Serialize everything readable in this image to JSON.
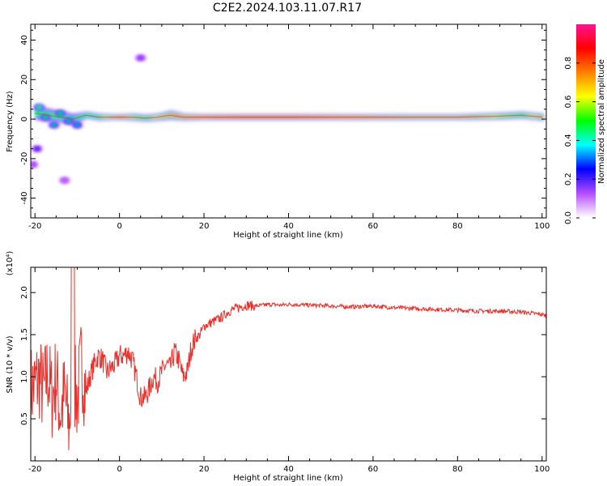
{
  "title": "C2E2.2024.103.11.07.R17",
  "colors": {
    "snr_line": "#e8302c",
    "axis": "#000000",
    "spectrum_ridge": "#e8302c"
  },
  "chart_data": [
    {
      "type": "heatmap",
      "xlabel": "Height of straight line (km)",
      "ylabel": "Frequency (Hz)",
      "xlim": [
        -21,
        101
      ],
      "ylim": [
        -50,
        48
      ],
      "x_ticks": [
        -20,
        0,
        20,
        40,
        60,
        80,
        100
      ],
      "y_ticks": [
        -40,
        -20,
        0,
        20,
        40
      ],
      "grid": false,
      "colorbar": {
        "label": "Normalized spectral amplitude",
        "range": [
          0.0,
          1.0
        ],
        "ticks": [
          0.0,
          0.2,
          0.4,
          0.6,
          0.8
        ],
        "colormap": [
          "#ffffff",
          "#b44dff",
          "#0000ff",
          "#00ffff",
          "#00ff00",
          "#ffff00",
          "#ff8000",
          "#ff0000",
          "#ff1493"
        ]
      },
      "ridge": {
        "x": [
          -20,
          -17,
          -14,
          -11,
          -8,
          -5,
          -2,
          0,
          3,
          6,
          9,
          12,
          15,
          20,
          30,
          40,
          50,
          60,
          70,
          80,
          90,
          95,
          100
        ],
        "frequency_hz": [
          3,
          2,
          1,
          0,
          2,
          1,
          1,
          1,
          1,
          0.5,
          1,
          2,
          1,
          1,
          1,
          1,
          1,
          1,
          1,
          1,
          1.5,
          2,
          1
        ],
        "amplitude": [
          0.5,
          0.55,
          0.5,
          0.45,
          0.5,
          0.55,
          0.7,
          0.85,
          0.6,
          0.55,
          0.65,
          0.75,
          0.8,
          0.85,
          0.9,
          0.9,
          0.85,
          0.8,
          0.75,
          0.75,
          0.6,
          0.55,
          0.7
        ],
        "spread_hz": [
          6,
          6,
          5,
          5,
          3,
          3,
          2.5,
          2.5,
          3,
          3,
          3,
          4,
          3,
          2.5,
          2.5,
          2.5,
          2.5,
          2.5,
          2.5,
          2.5,
          3,
          3,
          3
        ]
      },
      "blobs": [
        {
          "x": -19,
          "frequency_hz": 6,
          "amplitude": 0.55
        },
        {
          "x": -17.5,
          "frequency_hz": 1,
          "amplitude": 0.5
        },
        {
          "x": -15.5,
          "frequency_hz": -3,
          "amplitude": 0.45
        },
        {
          "x": -14,
          "frequency_hz": 3,
          "amplitude": 0.5
        },
        {
          "x": -12,
          "frequency_hz": -1,
          "amplitude": 0.45
        },
        {
          "x": -10,
          "frequency_hz": -3,
          "amplitude": 0.4
        },
        {
          "x": 5,
          "frequency_hz": 31,
          "amplitude": 0.15
        },
        {
          "x": -19.5,
          "frequency_hz": -15,
          "amplitude": 0.2
        },
        {
          "x": -20.5,
          "frequency_hz": -23,
          "amplitude": 0.12
        },
        {
          "x": -13,
          "frequency_hz": -31,
          "amplitude": 0.1
        }
      ]
    },
    {
      "type": "line",
      "xlabel": "Height of straight line (km)",
      "ylabel": "SNR (10 * v/v)",
      "y_scale_label": "(x10⁴)",
      "xlim": [
        -21,
        101
      ],
      "ylim": [
        0.0,
        2.3
      ],
      "x_ticks": [
        -20,
        0,
        20,
        40,
        60,
        80,
        100
      ],
      "y_ticks": [
        0.5,
        1.0,
        1.5,
        2.0
      ],
      "grid": false,
      "series": [
        {
          "color": "#e8302c",
          "x": [
            -21,
            -20,
            -19,
            -18,
            -17,
            -16,
            -15,
            -14,
            -13,
            -12,
            -11,
            -10,
            -9,
            -8,
            -7,
            -6,
            -5,
            -4,
            -3,
            -2,
            -1,
            0,
            1,
            2,
            3,
            4,
            5,
            6,
            7,
            8,
            9,
            10,
            11,
            12,
            13,
            14,
            15,
            16,
            17,
            18,
            19,
            20,
            22,
            24,
            26,
            28,
            30,
            32,
            34,
            36,
            38,
            40,
            45,
            50,
            55,
            60,
            65,
            70,
            75,
            80,
            85,
            90,
            95,
            100,
            101
          ],
          "values": [
            0.85,
            0.9,
            1.0,
            0.8,
            1.05,
            0.75,
            1.0,
            0.55,
            0.8,
            0.4,
            1.0,
            0.7,
            1.2,
            0.8,
            1.0,
            1.15,
            1.25,
            1.2,
            1.05,
            1.1,
            1.15,
            1.25,
            1.25,
            1.3,
            1.2,
            1.0,
            0.75,
            0.75,
            0.85,
            1.0,
            0.95,
            1.05,
            1.15,
            1.1,
            1.3,
            1.2,
            1.0,
            1.05,
            1.35,
            1.45,
            1.5,
            1.6,
            1.65,
            1.7,
            1.78,
            1.82,
            1.85,
            1.84,
            1.85,
            1.86,
            1.85,
            1.86,
            1.85,
            1.84,
            1.83,
            1.84,
            1.82,
            1.81,
            1.8,
            1.79,
            1.78,
            1.78,
            1.77,
            1.74,
            1.72
          ]
        }
      ]
    }
  ]
}
